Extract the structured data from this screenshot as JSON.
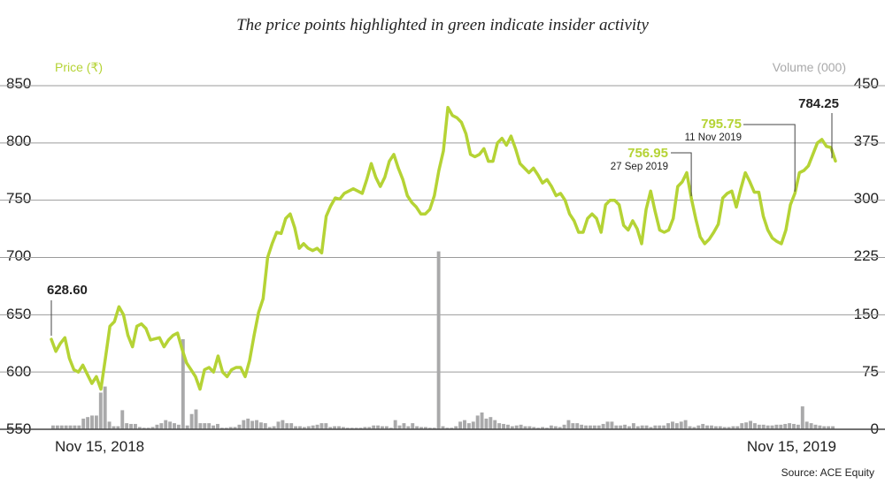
{
  "title": "The price points highlighted in green indicate insider activity",
  "source": "Source: ACE Equity",
  "colors": {
    "price": "#b5d335",
    "volume": "#a9a9aa",
    "grid": "#9b9b9b",
    "text": "#222222"
  },
  "chart_data": {
    "type": "line",
    "left_axis": {
      "label": "Price (₹)",
      "ticks": [
        "850",
        "800",
        "750",
        "700",
        "650",
        "600",
        "550"
      ],
      "range": [
        550,
        850
      ]
    },
    "right_axis": {
      "label": "Volume (000)",
      "ticks": [
        "450",
        "375",
        "300",
        "225",
        "150",
        "75",
        "0"
      ],
      "range": [
        0,
        450
      ]
    },
    "x_labels": {
      "start": "Nov 15, 2018",
      "end": "Nov 15, 2019"
    },
    "grid": true,
    "series": [
      {
        "name": "Price (₹)",
        "axis": "left",
        "values": [
          628.6,
          618,
          625,
          630,
          612,
          602,
          600,
          606,
          598,
          590,
          596,
          585,
          612,
          640,
          644,
          657,
          650,
          632,
          622,
          640,
          642,
          638,
          628,
          629,
          630,
          622,
          628,
          632,
          634,
          620,
          608,
          602,
          596,
          585,
          602,
          604,
          600,
          614,
          600,
          596,
          602,
          604,
          604,
          596,
          610,
          632,
          652,
          664,
          700,
          712,
          722,
          721,
          734,
          738,
          726,
          708,
          712,
          708,
          706,
          708,
          704,
          736,
          745,
          752,
          751,
          756,
          758,
          760,
          758,
          756,
          768,
          782,
          770,
          762,
          770,
          784,
          790,
          778,
          768,
          754,
          748,
          744,
          738,
          738,
          742,
          754,
          776,
          793,
          831,
          824,
          822,
          818,
          808,
          790,
          788,
          790,
          795,
          784,
          784,
          800,
          804,
          798,
          806,
          795,
          782,
          778,
          774,
          778,
          772,
          765,
          768,
          762,
          754,
          756,
          750,
          738,
          732,
          722,
          722,
          734,
          738,
          734,
          722,
          746,
          750,
          750,
          746,
          728,
          724,
          732,
          725,
          712,
          742,
          758,
          740,
          724,
          722,
          724,
          734,
          762,
          766,
          774,
          752,
          734,
          718,
          712,
          716,
          722,
          729,
          752,
          756,
          758,
          744,
          760,
          774,
          766,
          757,
          757,
          736,
          724,
          717,
          714,
          712,
          724,
          746,
          756,
          774,
          776,
          780,
          790,
          800,
          803,
          797,
          796,
          784.25
        ]
      },
      {
        "name": "Volume (000)",
        "axis": "right",
        "values": [
          5,
          5,
          5,
          5,
          5,
          5,
          5,
          14,
          16,
          18,
          18,
          48,
          56,
          10,
          4,
          4,
          25,
          8,
          7,
          7,
          3,
          2,
          2,
          3,
          6,
          8,
          12,
          10,
          8,
          6,
          118,
          5,
          20,
          26,
          8,
          8,
          8,
          5,
          7,
          2,
          2,
          3,
          3,
          6,
          12,
          14,
          11,
          12,
          9,
          8,
          3,
          4,
          10,
          12,
          8,
          8,
          4,
          4,
          3,
          4,
          5,
          6,
          8,
          8,
          3,
          4,
          4,
          3,
          2,
          2,
          2,
          2,
          3,
          3,
          5,
          5,
          4,
          4,
          2,
          12,
          5,
          8,
          4,
          8,
          4,
          3,
          3,
          2,
          2,
          233,
          4,
          2,
          2,
          4,
          10,
          12,
          8,
          10,
          18,
          22,
          14,
          16,
          12,
          8,
          7,
          6,
          4,
          5,
          6,
          4,
          4,
          3,
          2,
          3,
          2,
          5,
          4,
          3,
          6,
          12,
          8,
          8,
          6,
          5,
          5,
          5,
          5,
          7,
          10,
          10,
          5,
          5,
          6,
          4,
          8,
          4,
          5,
          5,
          3,
          5,
          5,
          5,
          8,
          10,
          8,
          10,
          12,
          4,
          3,
          5,
          7,
          5,
          5,
          4,
          4,
          3,
          3,
          4,
          4,
          8,
          9,
          11,
          8,
          6,
          6,
          5,
          5,
          6,
          6,
          7,
          8,
          7,
          6,
          30,
          10,
          8,
          6,
          5,
          4,
          4,
          4
        ]
      }
    ],
    "annotations": [
      {
        "value": "628.60",
        "date": "",
        "color": "#222222"
      },
      {
        "value": "756.95",
        "date": "27 Sep 2019",
        "color": "#b5d335"
      },
      {
        "value": "795.75",
        "date": "11 Nov 2019",
        "color": "#b5d335"
      },
      {
        "value": "784.25",
        "date": "",
        "color": "#222222"
      }
    ]
  }
}
